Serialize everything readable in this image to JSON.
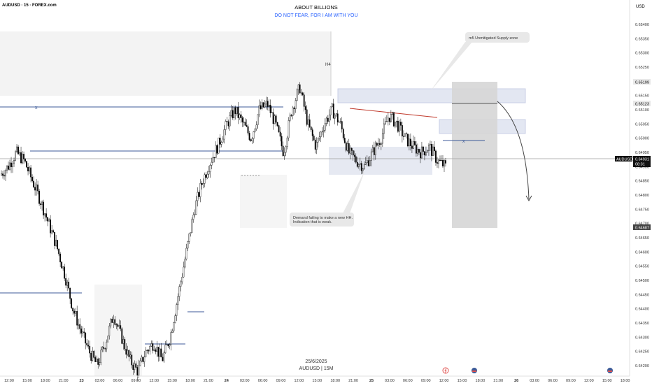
{
  "header": {
    "symbol_line": "AUDUSD · 15 · FOREX.com",
    "title": "ABOUT BILLIONS",
    "subtitle": "DO NOT FEAR, FOR I AM WITH YOU",
    "currency": "USD"
  },
  "watermark": {
    "date": "25/6/2025",
    "symbol": "AUDUSD | 15M"
  },
  "annotations": {
    "supply_note": "m5 Unmitigated Supply zone",
    "demand_note_line1": "Demand failing to make a new HH.",
    "demand_note_line2": "Indication that is weak.",
    "h4_label": "H4",
    "x_marker_left": "x",
    "x_marker_right": "x",
    "x_marker_trend": "x"
  },
  "price_badges": {
    "current_symbol": "AUDUSD",
    "current_price": "0.64931",
    "countdown": "08:31",
    "level_top": "0.65199",
    "level_mid": "0.65123",
    "level_bottom": "0.64687"
  },
  "colors": {
    "candle_body": "#ffffff",
    "candle_outline": "#000000",
    "zone_gray": "#e8e8e8",
    "zone_supply": "#c9cfe6",
    "level_line": "#3c5a98",
    "trendline": "#c0392b",
    "position_box": "#c8c8c8",
    "title_blue": "#2962ff"
  },
  "chart_data": {
    "type": "candlestick",
    "title": "ABOUT BILLIONS",
    "subtitle": "DO NOT FEAR, FOR I AM WITH YOU",
    "symbol": "AUDUSD",
    "timeframe": "15",
    "y_axis": {
      "unit": "USD",
      "range": [
        0.6419,
        0.6547
      ],
      "ticks": [
        "0.65400",
        "0.65350",
        "0.65300",
        "0.65250",
        "0.65200",
        "0.65150",
        "0.65100",
        "0.65050",
        "0.65000",
        "0.64950",
        "0.64900",
        "0.64850",
        "0.64800",
        "0.64750",
        "0.64700",
        "0.64650",
        "0.64600",
        "0.64550",
        "0.64500",
        "0.64450",
        "0.64400",
        "0.64350",
        "0.64300",
        "0.64250",
        "0.64200"
      ]
    },
    "x_axis": {
      "ticks": [
        "12:00",
        "15:00",
        "18:00",
        "21:00",
        "23",
        "03:00",
        "06:00",
        "09:00",
        "12:00",
        "15:00",
        "18:00",
        "21:00",
        "24",
        "03:00",
        "06:00",
        "09:00",
        "12:00",
        "15:00",
        "18:00",
        "21:00",
        "25",
        "03:00",
        "06:00",
        "09:00",
        "12:00",
        "15:00",
        "18:00",
        "21:00",
        "26",
        "03:00",
        "06:00",
        "09:00",
        "12:00",
        "15:00",
        "18:00"
      ]
    },
    "current_price": 0.64931,
    "marked_levels": [
      0.65199,
      0.65123,
      0.64687
    ],
    "close_path_estimate": [
      [
        0,
        0.6487
      ],
      [
        6,
        0.649
      ],
      [
        12,
        0.6495
      ],
      [
        18,
        0.6492
      ],
      [
        24,
        0.6485
      ],
      [
        30,
        0.6478
      ],
      [
        36,
        0.647
      ],
      [
        42,
        0.6462
      ],
      [
        48,
        0.6452
      ],
      [
        54,
        0.644
      ],
      [
        60,
        0.6432
      ],
      [
        66,
        0.6425
      ],
      [
        72,
        0.642
      ],
      [
        78,
        0.6428
      ],
      [
        84,
        0.6438
      ],
      [
        90,
        0.643
      ],
      [
        96,
        0.6422
      ],
      [
        102,
        0.6418
      ],
      [
        108,
        0.6425
      ],
      [
        114,
        0.6428
      ],
      [
        120,
        0.6422
      ],
      [
        126,
        0.643
      ],
      [
        132,
        0.6445
      ],
      [
        138,
        0.646
      ],
      [
        144,
        0.6475
      ],
      [
        150,
        0.6485
      ],
      [
        156,
        0.6492
      ],
      [
        162,
        0.6498
      ],
      [
        168,
        0.6505
      ],
      [
        174,
        0.651
      ],
      [
        180,
        0.6505
      ],
      [
        186,
        0.65
      ],
      [
        192,
        0.651
      ],
      [
        198,
        0.6512
      ],
      [
        204,
        0.6505
      ],
      [
        210,
        0.6495
      ],
      [
        216,
        0.651
      ],
      [
        222,
        0.6518
      ],
      [
        228,
        0.6505
      ],
      [
        234,
        0.6497
      ],
      [
        240,
        0.6505
      ],
      [
        246,
        0.651
      ],
      [
        252,
        0.6505
      ],
      [
        258,
        0.6495
      ],
      [
        264,
        0.6492
      ],
      [
        270,
        0.649
      ],
      [
        276,
        0.6495
      ],
      [
        282,
        0.65
      ],
      [
        288,
        0.6508
      ],
      [
        294,
        0.6505
      ],
      [
        300,
        0.65
      ],
      [
        306,
        0.6497
      ],
      [
        312,
        0.6495
      ],
      [
        318,
        0.6497
      ],
      [
        324,
        0.6492
      ],
      [
        330,
        0.649
      ]
    ]
  }
}
